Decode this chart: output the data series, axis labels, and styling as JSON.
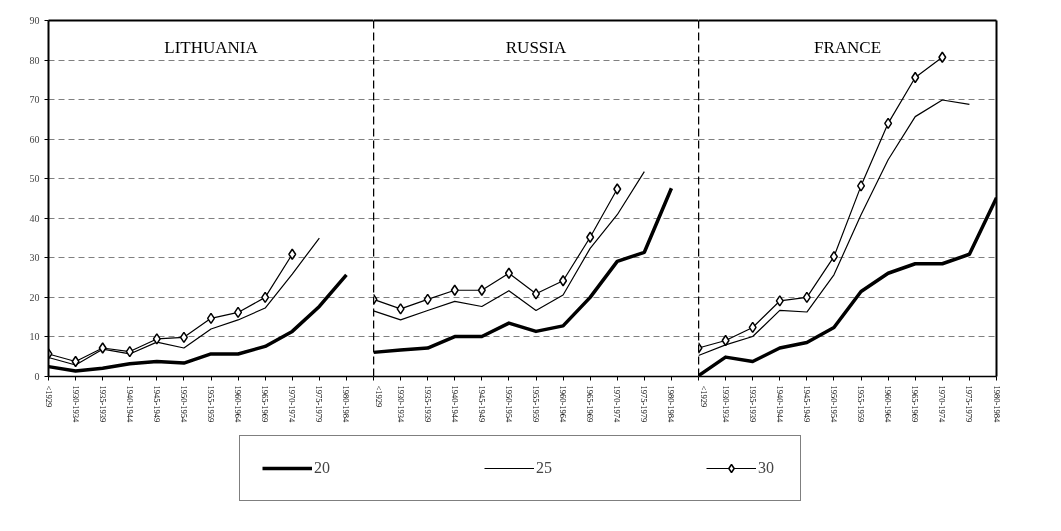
{
  "chart_data": [
    {
      "type": "line",
      "title": "LITHUANIA",
      "categories": [
        "<1929",
        "1930-1934",
        "1935-1939",
        "1940-1944",
        "1945-1949",
        "1950-1954",
        "1955-1959",
        "1960-1964",
        "1965-1969",
        "1970-1974",
        "1975-1979",
        "1980-1984"
      ],
      "ylim": [
        0,
        90
      ],
      "yticks": [
        0,
        10,
        20,
        30,
        40,
        50,
        60,
        70,
        80,
        90
      ],
      "grid": "y",
      "legend": "bottom",
      "series": [
        {
          "name": "20",
          "color": "#000000",
          "marker": "none",
          "values": [
            2.5,
            1.4,
            2.1,
            3.2,
            3.8,
            3.4,
            5.7,
            5.7,
            7.6,
            11.4,
            17.7,
            25.7
          ]
        },
        {
          "name": "25",
          "color": "#000000",
          "marker": "none",
          "values": [
            4.8,
            2.9,
            6.9,
            5.7,
            8.7,
            7.2,
            12,
            14.3,
            17.3,
            25.9,
            35.0,
            null
          ]
        },
        {
          "name": "30",
          "color": "#000000",
          "marker": "diamond",
          "values": [
            5.7,
            3.8,
            7.2,
            6.3,
            9.5,
            9.9,
            14.7,
            16.2,
            20.0,
            30.9,
            null,
            null
          ]
        }
      ]
    },
    {
      "type": "line",
      "title": "RUSSIA",
      "categories": [
        "<1929",
        "1930-1934",
        "1935-1939",
        "1940-1944",
        "1945-1949",
        "1950-1954",
        "1955-1959",
        "1960-1964",
        "1965-1969",
        "1970-1974",
        "1975-1979",
        "1980-1984"
      ],
      "ylim": [
        0,
        90
      ],
      "yticks": [
        0,
        10,
        20,
        30,
        40,
        50,
        60,
        70,
        80,
        90
      ],
      "grid": "y",
      "tick_labels": "x",
      "series": [
        {
          "color": "#000000",
          "marker": "none",
          "values": [
            6.1,
            6.7,
            7.2,
            10.1,
            10.1,
            13.5,
            11.4,
            12.8,
            20.0,
            29.1,
            31.4,
            47.6
          ]
        },
        {
          "color": "#000000",
          "marker": "none",
          "values": [
            16.6,
            14.3,
            16.7,
            19.0,
            17.7,
            21.7,
            16.7,
            20.6,
            32.4,
            40.9,
            51.8,
            null
          ]
        },
        {
          "color": "#000000",
          "marker": "diamond",
          "values": [
            19.5,
            17.1,
            19.5,
            21.8,
            21.8,
            26.1,
            20.9,
            24.2,
            35.2,
            47.4,
            null,
            null
          ]
        }
      ]
    },
    {
      "type": "line",
      "title": "FRANCE",
      "categories": [
        "<1929",
        "1930-1934",
        "1935-1939",
        "1940-1944",
        "1945-1949",
        "1950-1954",
        "1955-1959",
        "1960-1964",
        "1965-1969",
        "1970-1974",
        "1975-1979",
        "1980-1984"
      ],
      "ylim": [
        0,
        90
      ],
      "yticks": [
        0,
        10,
        20,
        30,
        40,
        50,
        60,
        70,
        80,
        90
      ],
      "grid": "y",
      "tick_labels": "x",
      "series": [
        {
          "color": "#000000",
          "marker": "none",
          "values": [
            0.2,
            4.9,
            3.8,
            7.2,
            8.6,
            12.4,
            21.5,
            26.1,
            28.5,
            28.5,
            30.9,
            45.2
          ]
        },
        {
          "color": "#000000",
          "marker": "none",
          "values": [
            5.3,
            8.0,
            10.1,
            16.7,
            16.3,
            25.7,
            40.9,
            54.8,
            65.7,
            69.9,
            68.8,
            null
          ]
        },
        {
          "color": "#000000",
          "marker": "diamond",
          "values": [
            7.2,
            9.1,
            12.4,
            19.1,
            20.0,
            30.3,
            48.2,
            64.0,
            75.6,
            80.7,
            null,
            null
          ]
        }
      ]
    }
  ]
}
